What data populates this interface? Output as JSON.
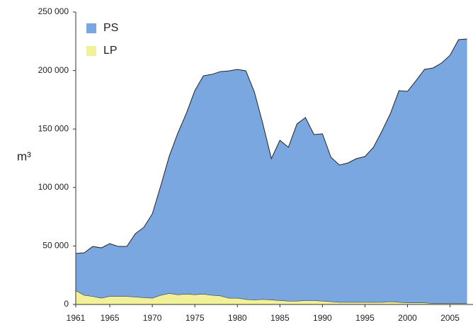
{
  "chart_data": {
    "type": "stacked_area",
    "y_label": "m³",
    "x": [
      1961,
      1962,
      1963,
      1964,
      1965,
      1966,
      1967,
      1968,
      1969,
      1970,
      1971,
      1972,
      1973,
      1974,
      1975,
      1976,
      1977,
      1978,
      1979,
      1980,
      1981,
      1982,
      1983,
      1984,
      1985,
      1986,
      1987,
      1988,
      1989,
      1990,
      1991,
      1992,
      1993,
      1994,
      1995,
      1996,
      1997,
      1998,
      1999,
      2000,
      2001,
      2002,
      2003,
      2004,
      2005,
      2006,
      2007
    ],
    "series": [
      {
        "name": "LP",
        "color": "#f3f09a",
        "values": [
          12000,
          8000,
          7000,
          5500,
          7000,
          7000,
          7000,
          6500,
          6000,
          5500,
          8000,
          9500,
          8500,
          9000,
          8500,
          9000,
          8000,
          7500,
          5500,
          5500,
          4500,
          4000,
          4500,
          4000,
          3500,
          3000,
          3000,
          3500,
          3500,
          3000,
          2500,
          2000,
          2000,
          2000,
          2000,
          2000,
          2000,
          2500,
          2000,
          1500,
          1500,
          1500,
          1000,
          1000,
          1000,
          1000,
          1000
        ]
      },
      {
        "name": "PS",
        "color": "#7ba7e0",
        "values": [
          31600,
          36200,
          42600,
          42900,
          45000,
          42600,
          42600,
          54000,
          60000,
          72000,
          93700,
          117500,
          138000,
          154400,
          174300,
          186500,
          188700,
          191600,
          194200,
          195500,
          195200,
          177600,
          149800,
          120700,
          136900,
          131400,
          151300,
          156300,
          141800,
          142900,
          123400,
          117200,
          119000,
          122700,
          124500,
          132400,
          146300,
          160900,
          180800,
          180700,
          189800,
          199500,
          201200,
          205400,
          212000,
          225400,
          226000
        ]
      }
    ],
    "xlim": [
      1961,
      2007.7
    ],
    "xticks": [
      1961,
      1965,
      1970,
      1975,
      1980,
      1985,
      1990,
      1995,
      2000,
      2005
    ],
    "ylim": [
      0,
      250000
    ],
    "yticks": [
      {
        "value": 0,
        "label": "0"
      },
      {
        "value": 50000,
        "label": "50 000"
      },
      {
        "value": 100000,
        "label": "100 000"
      },
      {
        "value": 150000,
        "label": "150 000"
      },
      {
        "value": 200000,
        "label": "200 000"
      },
      {
        "value": 250000,
        "label": "250 000"
      }
    ],
    "legend": "top-left"
  }
}
